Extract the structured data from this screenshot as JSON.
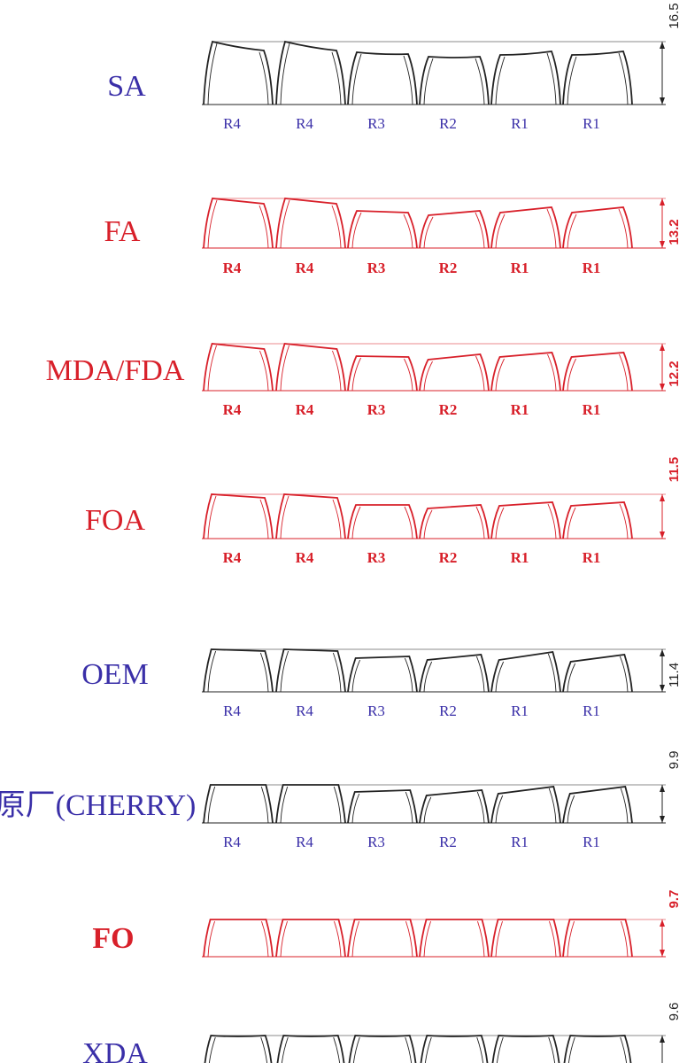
{
  "profiles": [
    {
      "name": "SA",
      "height": "16.5",
      "color": "#222222",
      "label_color": "#3a2fa8",
      "bold": false,
      "rows": [
        "R4",
        "R4",
        "R3",
        "R2",
        "R1",
        "R1"
      ]
    },
    {
      "name": "FA",
      "height": "13.2",
      "color": "#d8202a",
      "label_color": "#d8202a",
      "bold": false,
      "rows": [
        "R4",
        "R4",
        "R3",
        "R2",
        "R1",
        "R1"
      ]
    },
    {
      "name": "MDA/FDA",
      "height": "12.2",
      "color": "#d8202a",
      "label_color": "#d8202a",
      "bold": false,
      "rows": [
        "R4",
        "R4",
        "R3",
        "R2",
        "R1",
        "R1"
      ]
    },
    {
      "name": "FOA",
      "height": "11.5",
      "color": "#d8202a",
      "label_color": "#d8202a",
      "bold": false,
      "rows": [
        "R4",
        "R4",
        "R3",
        "R2",
        "R1",
        "R1"
      ]
    },
    {
      "name": "OEM",
      "height": "11.4",
      "color": "#222222",
      "label_color": "#3a2fa8",
      "bold": false,
      "rows": [
        "R4",
        "R4",
        "R3",
        "R2",
        "R1",
        "R1"
      ]
    },
    {
      "name": "原厂(CHERRY)",
      "height": "9.9",
      "color": "#222222",
      "label_color": "#3a2fa8",
      "bold": false,
      "rows": [
        "R4",
        "R4",
        "R3",
        "R2",
        "R1",
        "R1"
      ]
    },
    {
      "name": "FO",
      "height": "9.7",
      "color": "#d8202a",
      "label_color": "#d8202a",
      "bold": true,
      "rows": []
    },
    {
      "name": "XDA",
      "height": "9.6",
      "color": "#222222",
      "label_color": "#3a2fa8",
      "bold": false,
      "rows": []
    }
  ]
}
